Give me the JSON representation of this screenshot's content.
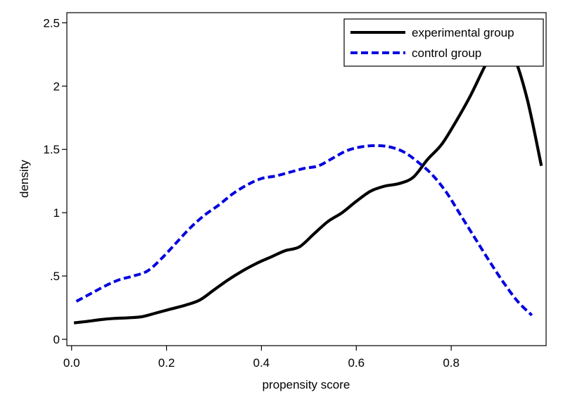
{
  "chart_data": {
    "type": "line",
    "title": "",
    "xlabel": "propensity score",
    "ylabel": "density",
    "xlim": [
      -0.01,
      1.0
    ],
    "ylim": [
      -0.05,
      2.58
    ],
    "x_ticks": [
      0.0,
      0.2,
      0.4,
      0.6,
      0.8
    ],
    "x_tick_labels": [
      "0.0",
      "0.2",
      "0.4",
      "0.6",
      "0.8"
    ],
    "y_ticks": [
      0,
      0.5,
      1,
      1.5,
      2,
      2.5
    ],
    "y_tick_labels": [
      "0",
      ".5",
      "1",
      "1.5",
      "2",
      "2.5"
    ],
    "grid": false,
    "legend_position": "top-right",
    "series": [
      {
        "name": "experimental group",
        "color": "#000000",
        "style": "solid",
        "x": [
          0.005,
          0.03,
          0.06,
          0.09,
          0.12,
          0.15,
          0.18,
          0.21,
          0.24,
          0.27,
          0.3,
          0.33,
          0.36,
          0.39,
          0.42,
          0.45,
          0.48,
          0.51,
          0.54,
          0.57,
          0.6,
          0.63,
          0.66,
          0.69,
          0.72,
          0.75,
          0.78,
          0.81,
          0.84,
          0.87,
          0.9,
          0.93,
          0.96,
          0.99
        ],
        "values": [
          0.13,
          0.14,
          0.155,
          0.165,
          0.17,
          0.18,
          0.21,
          0.24,
          0.27,
          0.31,
          0.39,
          0.47,
          0.54,
          0.6,
          0.65,
          0.7,
          0.73,
          0.83,
          0.93,
          1.0,
          1.09,
          1.17,
          1.21,
          1.23,
          1.28,
          1.42,
          1.54,
          1.72,
          1.92,
          2.15,
          2.36,
          2.25,
          1.9,
          1.37
        ]
      },
      {
        "name": "control group",
        "color": "#0000e0",
        "style": "dashed",
        "x": [
          0.01,
          0.04,
          0.07,
          0.1,
          0.13,
          0.16,
          0.19,
          0.22,
          0.25,
          0.28,
          0.31,
          0.34,
          0.37,
          0.4,
          0.43,
          0.46,
          0.49,
          0.52,
          0.55,
          0.58,
          0.61,
          0.64,
          0.67,
          0.7,
          0.73,
          0.76,
          0.79,
          0.82,
          0.85,
          0.88,
          0.91,
          0.94,
          0.97
        ],
        "values": [
          0.3,
          0.36,
          0.42,
          0.47,
          0.5,
          0.54,
          0.64,
          0.76,
          0.88,
          0.98,
          1.06,
          1.15,
          1.22,
          1.27,
          1.29,
          1.32,
          1.35,
          1.37,
          1.43,
          1.49,
          1.52,
          1.53,
          1.52,
          1.48,
          1.4,
          1.3,
          1.16,
          0.98,
          0.8,
          0.62,
          0.45,
          0.3,
          0.19
        ]
      }
    ]
  }
}
